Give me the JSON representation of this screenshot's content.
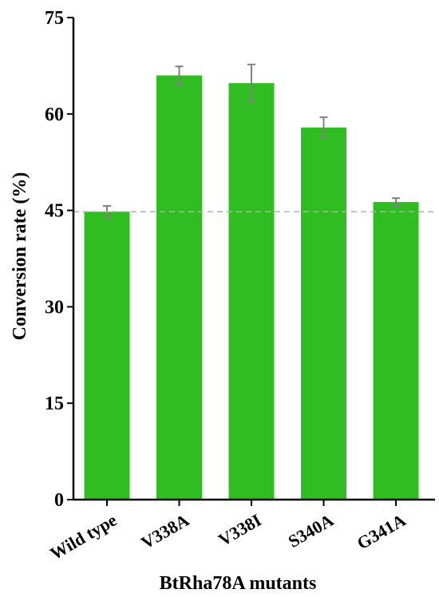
{
  "chart_data": {
    "type": "bar",
    "title": "",
    "xlabel": "BtRha78A mutants",
    "ylabel": "Conversion rate (%)",
    "ylim": [
      0,
      75
    ],
    "yticks": [
      "0",
      "15",
      "30",
      "45",
      "60",
      "75"
    ],
    "categories": [
      "Wild type",
      "V338A",
      "V338I",
      "S340A",
      "G341A"
    ],
    "values": [
      44.8,
      66.0,
      64.8,
      57.9,
      46.3
    ],
    "errors": [
      0.9,
      1.4,
      2.9,
      1.6,
      0.6
    ],
    "reference_line": 44.8,
    "grid": false,
    "colors": {
      "bar": "#30bd22",
      "error": "#808080",
      "reference": "#b0b0b0",
      "axis": "#000000"
    }
  }
}
